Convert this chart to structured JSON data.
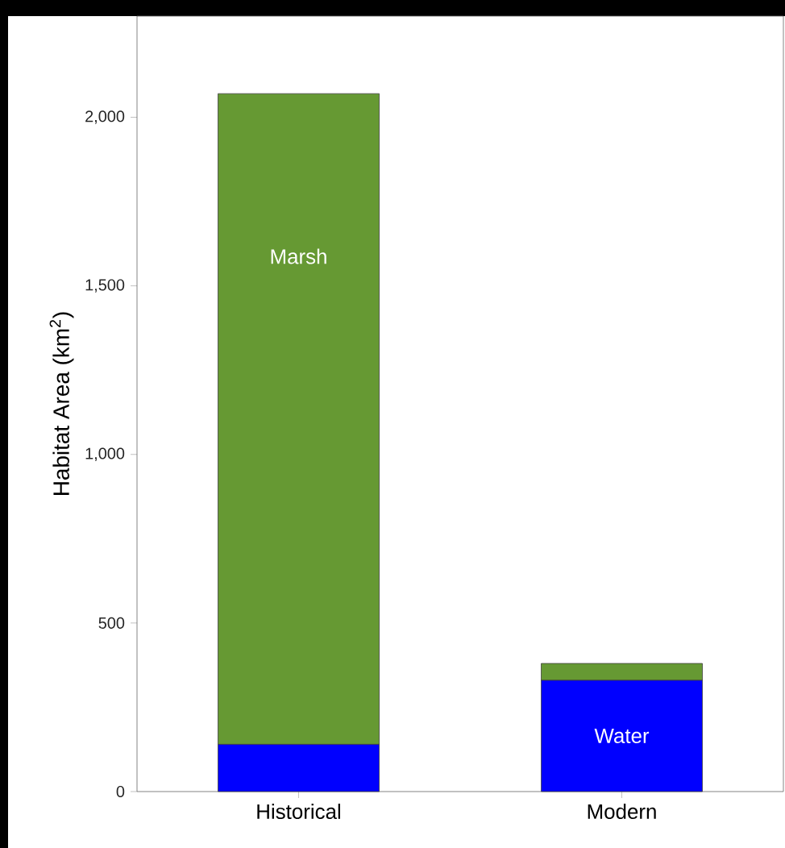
{
  "chart_data": {
    "type": "bar",
    "stacked": true,
    "ylabel": "Habitat Area (km$^{2}$)",
    "categories": [
      "Historical",
      "Modern"
    ],
    "series": [
      {
        "name": "Water",
        "color": "#0000ff",
        "values": [
          140,
          330
        ]
      },
      {
        "name": "Marsh",
        "color": "#669933",
        "values": [
          1930,
          50
        ]
      }
    ],
    "ylim": [
      0,
      2300
    ],
    "yticks": [
      0,
      500,
      {
        "value": 1000,
        "label": "1,000"
      },
      {
        "value": 1500,
        "label": "1,500"
      },
      {
        "value": 2000,
        "label": "2,000"
      }
    ],
    "grid": false,
    "legend": false
  }
}
